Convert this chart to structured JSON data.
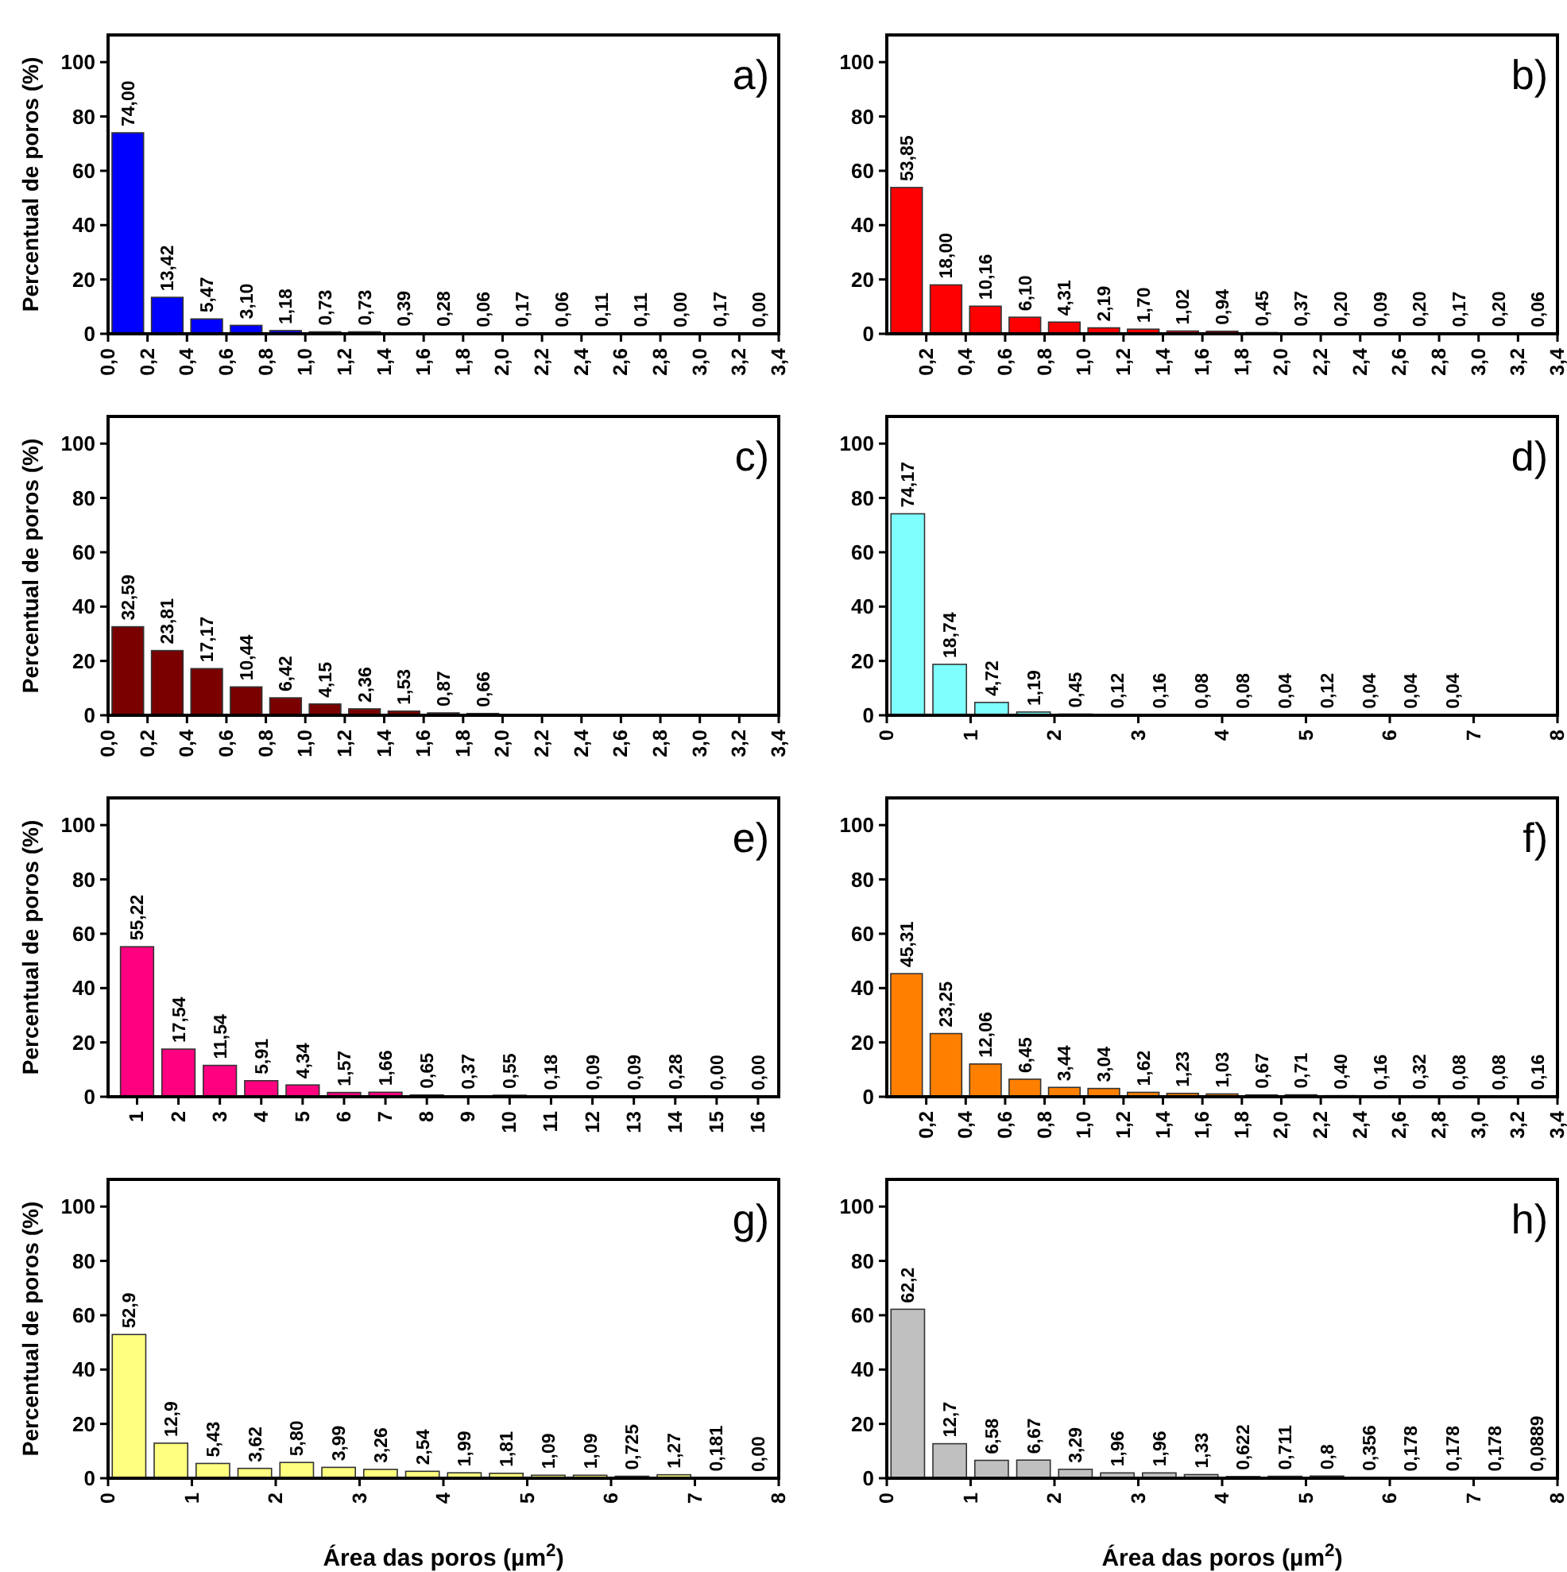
{
  "chart_data": [
    {
      "type": "histogram",
      "title": "a)",
      "ylabel": "Percentual de poros (%)",
      "color": "#0000ff",
      "bins": [
        0,
        0.2,
        0.4,
        0.6,
        0.8,
        1.0,
        1.2,
        1.4,
        1.6,
        1.8,
        2.0,
        2.2,
        2.4,
        2.6,
        2.8,
        3.0,
        3.2,
        3.4
      ],
      "values": [
        74.0,
        13.42,
        5.47,
        3.1,
        1.18,
        0.73,
        0.73,
        0.39,
        0.28,
        0.06,
        0.17,
        0.06,
        0.11,
        0.11,
        0.0,
        0.17,
        0.0
      ],
      "value_labels": [
        "74,00",
        "13,42",
        "5,47",
        "3,10",
        "1,18",
        "0,73",
        "0,73",
        "0,39",
        "0,28",
        "0,06",
        "0,17",
        "0,06",
        "0,11",
        "0,11",
        "0,00",
        "0,17",
        "0,00"
      ],
      "xlim": [
        0,
        3.4
      ],
      "xticks": [
        {
          "value": 0,
          "label": "0,0"
        },
        {
          "value": 0.2,
          "label": "0,2"
        },
        {
          "value": 0.4,
          "label": "0,4"
        },
        {
          "value": 0.6,
          "label": "0,6"
        },
        {
          "value": 0.8,
          "label": "0,8"
        },
        {
          "value": 1.0,
          "label": "1,0"
        },
        {
          "value": 1.2,
          "label": "1,2"
        },
        {
          "value": 1.4,
          "label": "1,4"
        },
        {
          "value": 1.6,
          "label": "1,6"
        },
        {
          "value": 1.8,
          "label": "1,8"
        },
        {
          "value": 2.0,
          "label": "2,0"
        },
        {
          "value": 2.2,
          "label": "2,2"
        },
        {
          "value": 2.4,
          "label": "2,4"
        },
        {
          "value": 2.6,
          "label": "2,6"
        },
        {
          "value": 2.8,
          "label": "2,8"
        },
        {
          "value": 3.0,
          "label": "3,0"
        },
        {
          "value": 3.2,
          "label": "3,2"
        },
        {
          "value": 3.4,
          "label": "3,4"
        }
      ],
      "ylim": [
        0,
        110
      ],
      "yticks": [
        0,
        20,
        40,
        60,
        80,
        100
      ]
    },
    {
      "type": "histogram",
      "title": "b)",
      "color": "#ff0000",
      "bins": [
        0,
        0.2,
        0.4,
        0.6,
        0.8,
        1.0,
        1.2,
        1.4,
        1.6,
        1.8,
        2.0,
        2.2,
        2.4,
        2.6,
        2.8,
        3.0,
        3.2,
        3.4
      ],
      "values": [
        53.85,
        18.0,
        10.16,
        6.1,
        4.31,
        2.19,
        1.7,
        1.02,
        0.94,
        0.45,
        0.37,
        0.2,
        0.09,
        0.2,
        0.17,
        0.2,
        0.06
      ],
      "value_labels": [
        "53,85",
        "18,00",
        "10,16",
        "6,10",
        "4,31",
        "2,19",
        "1,70",
        "1,02",
        "0,94",
        "0,45",
        "0,37",
        "0,20",
        "0,09",
        "0,20",
        "0,17",
        "0,20",
        "0,06"
      ],
      "xlim": [
        0,
        3.4
      ],
      "xticks": [
        {
          "value": 0.2,
          "label": "0,2"
        },
        {
          "value": 0.4,
          "label": "0,4"
        },
        {
          "value": 0.6,
          "label": "0,6"
        },
        {
          "value": 0.8,
          "label": "0,8"
        },
        {
          "value": 1.0,
          "label": "1,0"
        },
        {
          "value": 1.2,
          "label": "1,2"
        },
        {
          "value": 1.4,
          "label": "1,4"
        },
        {
          "value": 1.6,
          "label": "1,6"
        },
        {
          "value": 1.8,
          "label": "1,8"
        },
        {
          "value": 2.0,
          "label": "2,0"
        },
        {
          "value": 2.2,
          "label": "2,2"
        },
        {
          "value": 2.4,
          "label": "2,4"
        },
        {
          "value": 2.6,
          "label": "2,6"
        },
        {
          "value": 2.8,
          "label": "2,8"
        },
        {
          "value": 3.0,
          "label": "3,0"
        },
        {
          "value": 3.2,
          "label": "3,2"
        },
        {
          "value": 3.4,
          "label": "3,4"
        }
      ],
      "ylim": [
        0,
        110
      ],
      "yticks": [
        0,
        20,
        40,
        60,
        80,
        100
      ]
    },
    {
      "type": "histogram",
      "title": "c)",
      "ylabel": "Percentual de poros (%)",
      "color": "#7a0000",
      "bins": [
        0,
        0.2,
        0.4,
        0.6,
        0.8,
        1.0,
        1.2,
        1.4,
        1.6,
        1.8,
        2.0
      ],
      "values": [
        32.59,
        23.81,
        17.17,
        10.44,
        6.42,
        4.15,
        2.36,
        1.53,
        0.87,
        0.66
      ],
      "value_labels": [
        "32,59",
        "23,81",
        "17,17",
        "10,44",
        "6,42",
        "4,15",
        "2,36",
        "1,53",
        "0,87",
        "0,66"
      ],
      "xlim": [
        0,
        3.4
      ],
      "xticks": [
        {
          "value": 0,
          "label": "0,0"
        },
        {
          "value": 0.2,
          "label": "0,2"
        },
        {
          "value": 0.4,
          "label": "0,4"
        },
        {
          "value": 0.6,
          "label": "0,6"
        },
        {
          "value": 0.8,
          "label": "0,8"
        },
        {
          "value": 1.0,
          "label": "1,0"
        },
        {
          "value": 1.2,
          "label": "1,2"
        },
        {
          "value": 1.4,
          "label": "1,4"
        },
        {
          "value": 1.6,
          "label": "1,6"
        },
        {
          "value": 1.8,
          "label": "1,8"
        },
        {
          "value": 2.0,
          "label": "2,0"
        },
        {
          "value": 2.2,
          "label": "2,2"
        },
        {
          "value": 2.4,
          "label": "2,4"
        },
        {
          "value": 2.6,
          "label": "2,6"
        },
        {
          "value": 2.8,
          "label": "2,8"
        },
        {
          "value": 3.0,
          "label": "3,0"
        },
        {
          "value": 3.2,
          "label": "3,2"
        },
        {
          "value": 3.4,
          "label": "3,4"
        }
      ],
      "ylim": [
        0,
        110
      ],
      "yticks": [
        0,
        20,
        40,
        60,
        80,
        100
      ]
    },
    {
      "type": "histogram",
      "title": "d)",
      "color": "#80ffff",
      "bins": [
        0,
        0.5,
        1,
        1.5,
        2,
        2.5,
        3,
        3.5,
        4,
        4.5,
        5,
        5.5,
        6,
        6.5,
        7
      ],
      "values": [
        74.17,
        18.74,
        4.72,
        1.19,
        0.45,
        0.12,
        0.16,
        0.08,
        0.08,
        0.04,
        0.12,
        0.04,
        0.04,
        0.04
      ],
      "value_labels": [
        "74,17",
        "18,74",
        "4,72",
        "1,19",
        "0,45",
        "0,12",
        "0,16",
        "0,08",
        "0,08",
        "0,04",
        "0,12",
        "0,04",
        "0,04",
        "0,04"
      ],
      "xlim": [
        0,
        8
      ],
      "xticks": [
        0,
        1,
        2,
        3,
        4,
        5,
        6,
        7,
        8
      ],
      "ylim": [
        0,
        110
      ],
      "yticks": [
        0,
        20,
        40,
        60,
        80,
        100
      ]
    },
    {
      "type": "histogram",
      "title": "e)",
      "ylabel": "Percentual de poros (%)",
      "color": "#ff0080",
      "bins": [
        0.5,
        1.5,
        2.5,
        3.5,
        4.5,
        5.5,
        6.5,
        7.5,
        8.5,
        9.5,
        10.5,
        11.5,
        12.5,
        13.5,
        14.5,
        15.5,
        16.5
      ],
      "values": [
        55.22,
        17.54,
        11.54,
        5.91,
        4.34,
        1.57,
        1.66,
        0.65,
        0.37,
        0.55,
        0.18,
        0.09,
        0.09,
        0.28,
        0.0,
        0.0
      ],
      "value_labels": [
        "55,22",
        "17,54",
        "11,54",
        "5,91",
        "4,34",
        "1,57",
        "1,66",
        "0,65",
        "0,37",
        "0,55",
        "0,18",
        "0,09",
        "0,09",
        "0,28",
        "0,00",
        "0,00"
      ],
      "xlim": [
        0.3,
        16.5
      ],
      "xticks": [
        1,
        2,
        3,
        4,
        5,
        6,
        7,
        8,
        9,
        10,
        11,
        12,
        13,
        14,
        15,
        16
      ],
      "ylim": [
        0,
        110
      ],
      "yticks": [
        0,
        20,
        40,
        60,
        80,
        100
      ]
    },
    {
      "type": "histogram",
      "title": "f)",
      "color": "#ff8000",
      "bins": [
        0,
        0.2,
        0.4,
        0.6,
        0.8,
        1.0,
        1.2,
        1.4,
        1.6,
        1.8,
        2.0,
        2.2,
        2.4,
        2.6,
        2.8,
        3.0,
        3.2,
        3.4
      ],
      "values": [
        45.31,
        23.25,
        12.06,
        6.45,
        3.44,
        3.04,
        1.62,
        1.23,
        1.03,
        0.67,
        0.71,
        0.4,
        0.16,
        0.32,
        0.08,
        0.08,
        0.16
      ],
      "value_labels": [
        "45,31",
        "23,25",
        "12,06",
        "6,45",
        "3,44",
        "3,04",
        "1,62",
        "1,23",
        "1,03",
        "0,67",
        "0,71",
        "0,40",
        "0,16",
        "0,32",
        "0,08",
        "0,08",
        "0,16"
      ],
      "xlim": [
        0,
        3.4
      ],
      "xticks": [
        {
          "value": 0.2,
          "label": "0,2"
        },
        {
          "value": 0.4,
          "label": "0,4"
        },
        {
          "value": 0.6,
          "label": "0,6"
        },
        {
          "value": 0.8,
          "label": "0,8"
        },
        {
          "value": 1.0,
          "label": "1,0"
        },
        {
          "value": 1.2,
          "label": "1,2"
        },
        {
          "value": 1.4,
          "label": "1,4"
        },
        {
          "value": 1.6,
          "label": "1,6"
        },
        {
          "value": 1.8,
          "label": "1,8"
        },
        {
          "value": 2.0,
          "label": "2,0"
        },
        {
          "value": 2.2,
          "label": "2,2"
        },
        {
          "value": 2.4,
          "label": "2,4"
        },
        {
          "value": 2.6,
          "label": "2,6"
        },
        {
          "value": 2.8,
          "label": "2,8"
        },
        {
          "value": 3.0,
          "label": "3,0"
        },
        {
          "value": 3.2,
          "label": "3,2"
        },
        {
          "value": 3.4,
          "label": "3,4"
        }
      ],
      "ylim": [
        0,
        110
      ],
      "yticks": [
        0,
        20,
        40,
        60,
        80,
        100
      ]
    },
    {
      "type": "histogram",
      "title": "g)",
      "ylabel": "Percentual de poros (%)",
      "xlabel": "Área das poros (µm$^{2}$)",
      "color": "#ffff80",
      "bins": [
        0,
        0.5,
        1,
        1.5,
        2,
        2.5,
        3,
        3.5,
        4,
        4.5,
        5,
        5.5,
        6,
        6.5,
        7,
        7.5,
        8
      ],
      "values": [
        52.9,
        12.9,
        5.43,
        3.62,
        5.8,
        3.99,
        3.26,
        2.54,
        1.99,
        1.81,
        1.09,
        1.09,
        0.725,
        1.27,
        0.181,
        0.0
      ],
      "value_labels": [
        "52,9",
        "12,9",
        "5,43",
        "3,62",
        "5,80",
        "3,99",
        "3,26",
        "2,54",
        "1,99",
        "1,81",
        "1,09",
        "1,09",
        "0,725",
        "1,27",
        "0,181",
        "0,00"
      ],
      "xlim": [
        0,
        8
      ],
      "xticks": [
        0,
        1,
        2,
        3,
        4,
        5,
        6,
        7,
        8
      ],
      "ylim": [
        0,
        110
      ],
      "yticks": [
        0,
        20,
        40,
        60,
        80,
        100
      ]
    },
    {
      "type": "histogram",
      "title": "h)",
      "xlabel": "Área das poros (µm$^{2}$)",
      "color": "#c0c0c0",
      "bins": [
        0,
        0.5,
        1,
        1.5,
        2,
        2.5,
        3,
        3.5,
        4,
        4.5,
        5,
        5.5,
        6,
        6.5,
        7,
        7.5,
        8
      ],
      "values": [
        62.2,
        12.7,
        6.58,
        6.67,
        3.29,
        1.96,
        1.96,
        1.33,
        0.622,
        0.711,
        0.8,
        0.356,
        0.178,
        0.178,
        0.178,
        0.0889
      ],
      "value_labels": [
        "62,2",
        "12,7",
        "6,58",
        "6,67",
        "3,29",
        "1,96",
        "1,96",
        "1,33",
        "0,622",
        "0,711",
        "0,8",
        "0,356",
        "0,178",
        "0,178",
        "0,178",
        "0,0889"
      ],
      "xlim": [
        0,
        8
      ],
      "xticks": [
        0,
        1,
        2,
        3,
        4,
        5,
        6,
        7,
        8
      ],
      "ylim": [
        0,
        110
      ],
      "yticks": [
        0,
        20,
        40,
        60,
        80,
        100
      ]
    }
  ]
}
